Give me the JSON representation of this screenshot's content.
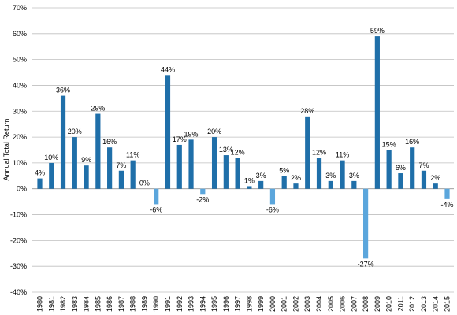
{
  "chart_data": {
    "type": "bar",
    "title": "",
    "xlabel": "",
    "ylabel": "Annual Total Return",
    "ylim": [
      -40,
      70
    ],
    "yticks": [
      70,
      60,
      50,
      40,
      30,
      20,
      10,
      0,
      -10,
      -20,
      -30,
      -40
    ],
    "ytick_labels": [
      "70%",
      "60%",
      "50%",
      "40%",
      "30%",
      "20%",
      "10%",
      "0%",
      "-10%",
      "-20%",
      "-30%",
      "-40%"
    ],
    "grid": "horizontal",
    "legend": "none",
    "colors": {
      "positive": "#1F6FA9",
      "negative": "#5BA6DC",
      "grid": "#BFBFBF",
      "axis": "#7F7F7F"
    },
    "categories": [
      "1980",
      "1981",
      "1982",
      "1983",
      "1984",
      "1985",
      "1986",
      "1987",
      "1988",
      "1989",
      "1990",
      "1991",
      "1992",
      "1993",
      "1994",
      "1995",
      "1996",
      "1997",
      "1998",
      "1999",
      "2000",
      "2001",
      "2002",
      "2003",
      "2004",
      "2005",
      "2006",
      "2007",
      "2008",
      "2009",
      "2010",
      "2011",
      "2012",
      "2013",
      "2014",
      "2015"
    ],
    "values": [
      4,
      10,
      36,
      20,
      9,
      29,
      16,
      7,
      11,
      0,
      -6,
      44,
      17,
      19,
      -2,
      20,
      13,
      12,
      1,
      3,
      -6,
      5,
      2,
      28,
      12,
      3,
      11,
      3,
      -27,
      59,
      15,
      6,
      16,
      7,
      2,
      -4
    ],
    "data_labels": [
      "4%",
      "10%",
      "36%",
      "20%",
      "9%",
      "29%",
      "16%",
      "7%",
      "11%",
      "0%",
      "-6%",
      "44%",
      "17%",
      "19%",
      "-2%",
      "20%",
      "13%",
      "12%",
      "1%",
      "3%",
      "-6%",
      "5%",
      "2%",
      "28%",
      "12%",
      "3%",
      "11%",
      "3%",
      "-27%",
      "59%",
      "15%",
      "6%",
      "16%",
      "7%",
      "2%",
      "-4%"
    ]
  }
}
